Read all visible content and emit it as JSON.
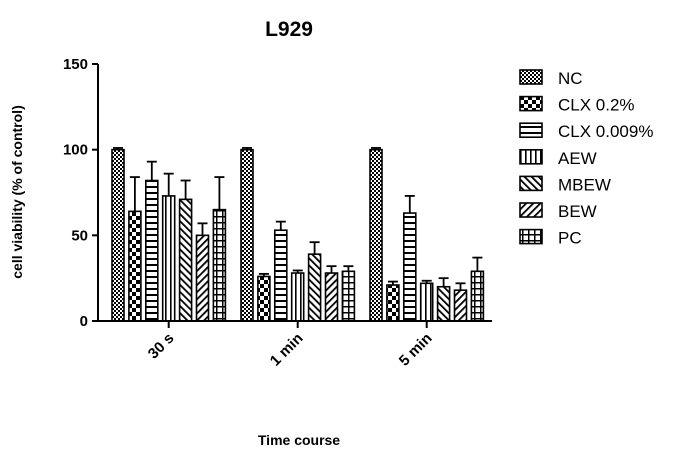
{
  "chart_data": {
    "type": "bar",
    "title": "L929",
    "xlabel": "Time course",
    "ylabel": "cell viability (% of control)",
    "ylim": [
      0,
      150
    ],
    "yticks": [
      "0",
      "50",
      "100",
      "150"
    ],
    "categories": [
      "30 s",
      "1 min",
      "5 min"
    ],
    "grid": false,
    "legend_position": "right",
    "series": [
      {
        "name": "NC",
        "pattern": "checker-fine",
        "values": [
          100,
          100,
          100
        ],
        "errors": [
          1,
          1,
          1
        ]
      },
      {
        "name": "CLX 0.2%",
        "pattern": "checker-coarse",
        "values": [
          64,
          26,
          21
        ],
        "errors": [
          20,
          1.5,
          2
        ]
      },
      {
        "name": "CLX 0.009%",
        "pattern": "horizontal",
        "values": [
          82,
          53,
          63
        ],
        "errors": [
          11,
          5,
          10
        ]
      },
      {
        "name": "AEW",
        "pattern": "vertical",
        "values": [
          73,
          28,
          22
        ],
        "errors": [
          13,
          1.5,
          1.5
        ]
      },
      {
        "name": "MBEW",
        "pattern": "diagonal-up",
        "values": [
          71,
          39,
          20
        ],
        "errors": [
          11,
          7,
          5
        ]
      },
      {
        "name": "BEW",
        "pattern": "diagonal-down",
        "values": [
          50,
          28,
          18
        ],
        "errors": [
          7,
          4,
          4
        ]
      },
      {
        "name": "PC",
        "pattern": "grid",
        "values": [
          65,
          29,
          29
        ],
        "errors": [
          19,
          3,
          8
        ]
      }
    ]
  }
}
